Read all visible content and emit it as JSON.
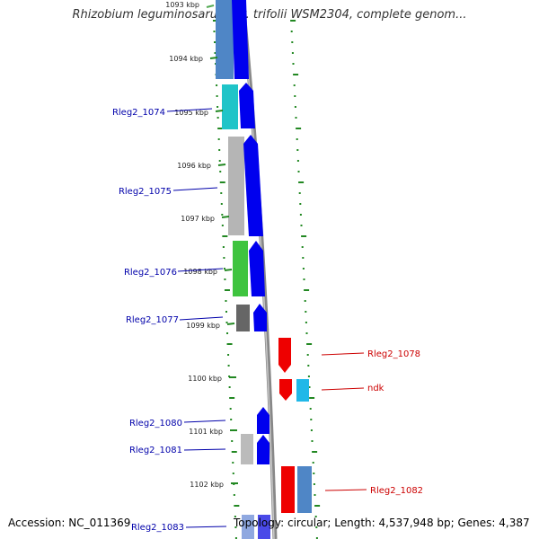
{
  "title": "Rhizobium leguminosarum bv. trifolii WSM2304, complete genom...",
  "footer": {
    "accession": "Accession: NC_011369",
    "summary": "Topology: circular; Length: 4,537,948 bp; Genes: 4,387"
  },
  "colors": {
    "forward_gene": "#0000ee",
    "reverse_gene": "#ee0000",
    "gc_ticks": "#228822",
    "left_label": "#0000aa",
    "right_label": "#cc0000",
    "backbone": "#888888"
  },
  "kbp_labels": [
    {
      "id": "1093",
      "text": "1093 kbp"
    },
    {
      "id": "1094",
      "text": "1094 kbp"
    },
    {
      "id": "1095",
      "text": "1095 kbp"
    },
    {
      "id": "1096",
      "text": "1096 kbp"
    },
    {
      "id": "1097",
      "text": "1097 kbp"
    },
    {
      "id": "1098",
      "text": "1098 kbp"
    },
    {
      "id": "1099",
      "text": "1099 kbp"
    },
    {
      "id": "1100",
      "text": "1100 kbp"
    },
    {
      "id": "1101",
      "text": "1101 kbp"
    },
    {
      "id": "1102",
      "text": "1102 kbp"
    }
  ],
  "genes": [
    {
      "id": "rleg2_1074",
      "label": "Rleg2_1074",
      "strand": "forward"
    },
    {
      "id": "rleg2_1075",
      "label": "Rleg2_1075",
      "strand": "forward"
    },
    {
      "id": "rleg2_1076",
      "label": "Rleg2_1076",
      "strand": "forward"
    },
    {
      "id": "rleg2_1077",
      "label": "Rleg2_1077",
      "strand": "forward"
    },
    {
      "id": "rleg2_1078",
      "label": "Rleg2_1078",
      "strand": "reverse"
    },
    {
      "id": "ndk",
      "label": "ndk",
      "strand": "reverse"
    },
    {
      "id": "rleg2_1080",
      "label": "Rleg2_1080",
      "strand": "forward"
    },
    {
      "id": "rleg2_1081",
      "label": "Rleg2_1081",
      "strand": "forward"
    },
    {
      "id": "rleg2_1082",
      "label": "Rleg2_1082",
      "strand": "reverse"
    },
    {
      "id": "rleg2_1083",
      "label": "Rleg2_1083",
      "strand": "forward"
    }
  ]
}
